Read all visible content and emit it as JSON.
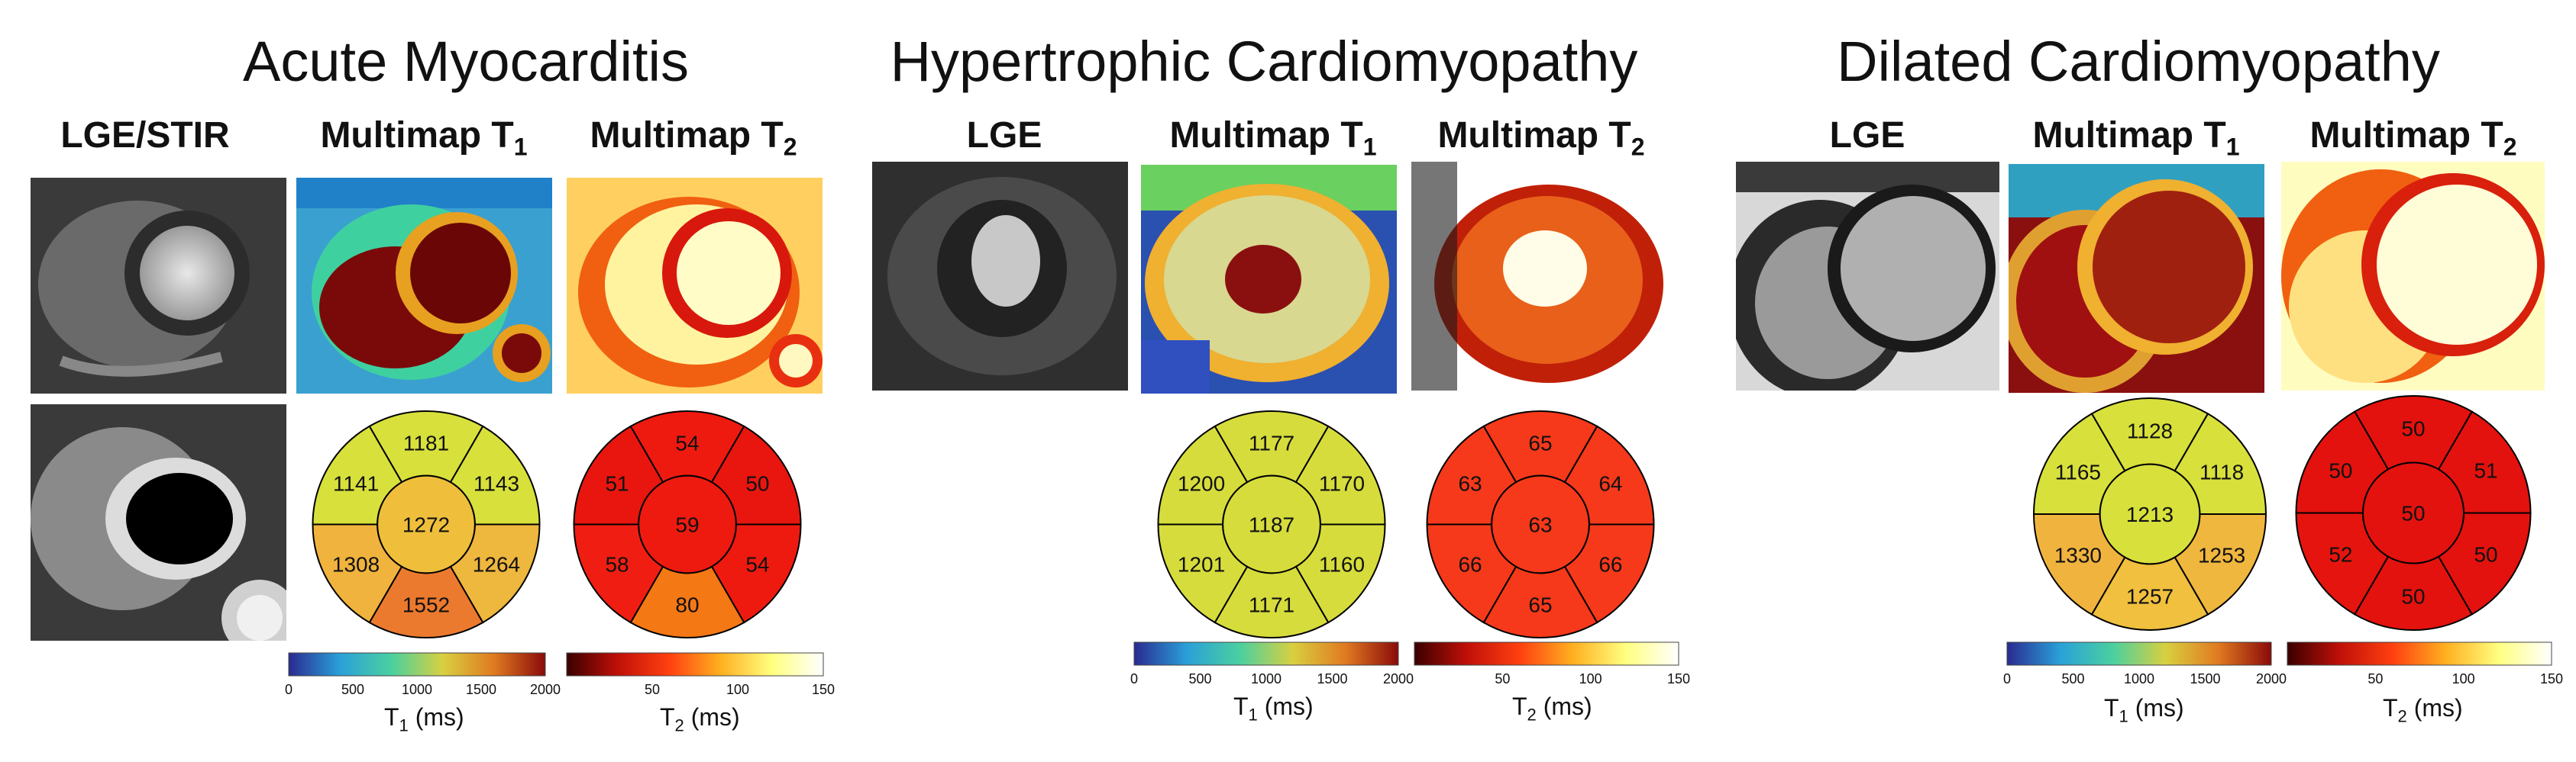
{
  "panels": [
    {
      "title": "Acute Myocarditis",
      "columns": [
        "LGE/STIR",
        "Multimap T",
        "Multimap T"
      ],
      "subscripts": [
        "1",
        "2"
      ],
      "t1_segments": {
        "center": "1272",
        "ring": [
          "1181",
          "1143",
          "1264",
          "1552",
          "1308",
          "1141"
        ]
      },
      "t2_segments": {
        "center": "59",
        "ring": [
          "54",
          "50",
          "54",
          "80",
          "58",
          "51"
        ]
      }
    },
    {
      "title": "Hypertrophic Cardiomyopathy",
      "columns": [
        "LGE",
        "Multimap T",
        "Multimap T"
      ],
      "subscripts": [
        "1",
        "2"
      ],
      "t1_segments": {
        "center": "1187",
        "ring": [
          "1177",
          "1170",
          "1160",
          "1171",
          "1201",
          "1200"
        ]
      },
      "t2_segments": {
        "center": "63",
        "ring": [
          "65",
          "64",
          "66",
          "65",
          "66",
          "63"
        ]
      }
    },
    {
      "title": "Dilated Cardiomyopathy",
      "columns": [
        "LGE",
        "Multimap T",
        "Multimap T"
      ],
      "subscripts": [
        "1",
        "2"
      ],
      "t1_segments": {
        "center": "1213",
        "ring": [
          "1128",
          "1118",
          "1253",
          "1257",
          "1330",
          "1165"
        ]
      },
      "t2_segments": {
        "center": "50",
        "ring": [
          "50",
          "51",
          "50",
          "50",
          "52",
          "50"
        ]
      }
    }
  ],
  "colorbars": {
    "t1": {
      "ticks": [
        "0",
        "500",
        "1000",
        "1500",
        "2000"
      ],
      "label": "T",
      "sub": "1",
      "unit": " (ms)"
    },
    "t2": {
      "ticks": [
        "50",
        "100",
        "150"
      ],
      "zero_tick": "",
      "label": "T",
      "sub": "2",
      "unit": " (ms)"
    }
  },
  "colors": {
    "acute_t1": {
      "center": "#efbf3c",
      "ring": [
        "#d8e03c",
        "#d8e03c",
        "#eeb73e",
        "#ec7a2e",
        "#f0b33e",
        "#d8e03c"
      ]
    },
    "acute_t2": {
      "center": "#ee1a10",
      "ring": [
        "#ee1a10",
        "#e8160f",
        "#ee1a10",
        "#f47814",
        "#f01e12",
        "#e8160f"
      ]
    },
    "hcm_t1": {
      "center": "#d6dc3c",
      "ring": [
        "#d6dc3c",
        "#d6dc3c",
        "#d6dc3c",
        "#d6dc3c",
        "#d6dc3c",
        "#d6dc3c"
      ]
    },
    "hcm_t2": {
      "center": "#f5391a",
      "ring": [
        "#f5391a",
        "#f5391a",
        "#f5391a",
        "#f5391a",
        "#f5391a",
        "#f5391a"
      ]
    },
    "dcm_t1": {
      "center": "#d8e03c",
      "ring": [
        "#d8e03c",
        "#d8e03c",
        "#f0b73e",
        "#f0c03e",
        "#f0b33e",
        "#d8e03c"
      ]
    },
    "dcm_t2": {
      "center": "#e3120e",
      "ring": [
        "#e3120e",
        "#e3120e",
        "#e3120e",
        "#e3120e",
        "#e6140e",
        "#e3120e"
      ]
    }
  }
}
